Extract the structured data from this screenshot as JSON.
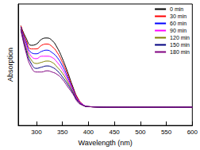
{
  "chart_data": {
    "type": "line",
    "x_label": "Wavelength (nm)",
    "y_label": "Absorption",
    "x": [
      270,
      280,
      290,
      300,
      310,
      320,
      330,
      340,
      350,
      360,
      370,
      380,
      390,
      400,
      450,
      500,
      550,
      600
    ],
    "series": [
      {
        "name": "0 min",
        "color": "#000000",
        "values": [
          0.82,
          0.72,
          0.66,
          0.67,
          0.71,
          0.72,
          0.7,
          0.64,
          0.55,
          0.44,
          0.32,
          0.22,
          0.17,
          0.155,
          0.15,
          0.15,
          0.15,
          0.15
        ]
      },
      {
        "name": "30 min",
        "color": "#ff0000",
        "values": [
          0.82,
          0.7,
          0.63,
          0.63,
          0.66,
          0.67,
          0.65,
          0.6,
          0.52,
          0.42,
          0.31,
          0.22,
          0.17,
          0.155,
          0.15,
          0.15,
          0.15,
          0.15
        ]
      },
      {
        "name": "60 min",
        "color": "#0000ff",
        "values": [
          0.81,
          0.68,
          0.6,
          0.59,
          0.61,
          0.62,
          0.6,
          0.56,
          0.49,
          0.4,
          0.3,
          0.21,
          0.17,
          0.155,
          0.15,
          0.15,
          0.15,
          0.15
        ]
      },
      {
        "name": "90 min",
        "color": "#ff00ff",
        "values": [
          0.8,
          0.66,
          0.57,
          0.55,
          0.57,
          0.57,
          0.56,
          0.52,
          0.46,
          0.38,
          0.29,
          0.21,
          0.17,
          0.155,
          0.15,
          0.15,
          0.15,
          0.15
        ]
      },
      {
        "name": "120 min",
        "color": "#808000",
        "values": [
          0.8,
          0.64,
          0.54,
          0.51,
          0.52,
          0.53,
          0.52,
          0.48,
          0.43,
          0.36,
          0.28,
          0.2,
          0.165,
          0.155,
          0.15,
          0.15,
          0.15,
          0.15
        ]
      },
      {
        "name": "150 min",
        "color": "#000080",
        "values": [
          0.79,
          0.62,
          0.51,
          0.47,
          0.48,
          0.49,
          0.48,
          0.45,
          0.4,
          0.34,
          0.27,
          0.2,
          0.165,
          0.155,
          0.15,
          0.15,
          0.15,
          0.15
        ]
      },
      {
        "name": "180 min",
        "color": "#800080",
        "values": [
          0.79,
          0.6,
          0.48,
          0.44,
          0.44,
          0.45,
          0.44,
          0.42,
          0.38,
          0.32,
          0.26,
          0.19,
          0.165,
          0.155,
          0.15,
          0.15,
          0.15,
          0.15
        ]
      }
    ],
    "xlim": [
      265,
      600
    ],
    "xticks": [
      300,
      350,
      400,
      450,
      500,
      550,
      600
    ],
    "ylim": [
      0,
      1
    ],
    "tick_labels": "x",
    "legend": "upper right",
    "grid": false
  }
}
